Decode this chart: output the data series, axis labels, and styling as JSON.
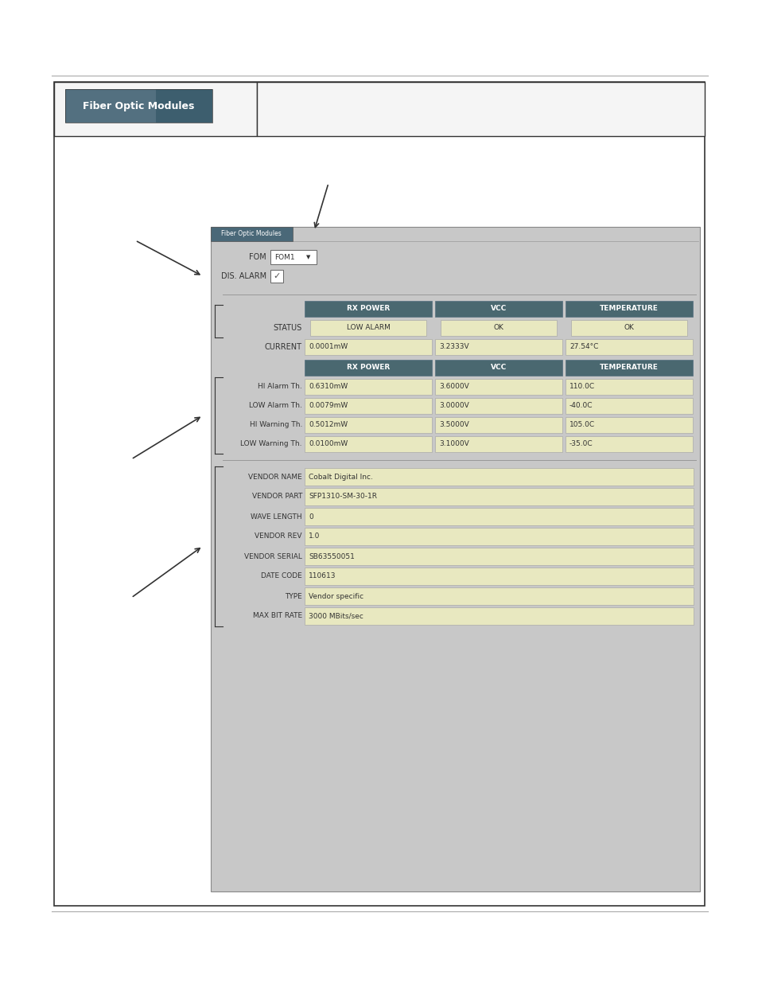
{
  "bg_color": "#ffffff",
  "panel_bg": "#c0c0c0",
  "field_bg": "#e8e8c0",
  "col_header_bg": "#4a6870",
  "col_header_text": "#ffffff",
  "header_tab_bg_light": "#5a7888",
  "header_tab_bg_dark": "#3a5865",
  "outer_box_bg": "#ffffff",
  "top_header_bg": "#f5f5f5",
  "btn_text": "Fiber Optic Modules",
  "inner_tab_text": "Fiber Optic Modules",
  "fom_label": "FOM",
  "fom_value": "FOM1",
  "dis_alarm_label": "DIS. ALARM",
  "status_headers": [
    "RX POWER",
    "VCC",
    "TEMPERATURE"
  ],
  "status_row_label": "STATUS",
  "status_values": [
    "LOW ALARM",
    "OK",
    "OK"
  ],
  "current_row_label": "CURRENT",
  "current_values": [
    "0.0001mW",
    "3.2333V",
    "27.54°C"
  ],
  "threshold_headers": [
    "RX POWER",
    "VCC",
    "TEMPERATURE"
  ],
  "threshold_rows": [
    {
      "label": "HI Alarm Th.",
      "values": [
        "0.6310mW",
        "3.6000V",
        "110.0C"
      ]
    },
    {
      "label": "LOW Alarm Th.",
      "values": [
        "0.0079mW",
        "3.0000V",
        "-40.0C"
      ]
    },
    {
      "label": "HI Warning Th.",
      "values": [
        "0.5012mW",
        "3.5000V",
        "105.0C"
      ]
    },
    {
      "label": "LOW Warning Th.",
      "values": [
        "0.0100mW",
        "3.1000V",
        "-35.0C"
      ]
    }
  ],
  "vendor_rows": [
    {
      "label": "VENDOR NAME",
      "value": "Cobalt Digital Inc."
    },
    {
      "label": "VENDOR PART",
      "value": "SFP1310-SM-30-1R"
    },
    {
      "label": "WAVE LENGTH",
      "value": "0"
    },
    {
      "label": "VENDOR REV",
      "value": "1.0"
    },
    {
      "label": "VENDOR SERIAL",
      "value": "SB63550051"
    },
    {
      "label": "DATE CODE",
      "value": "110613"
    },
    {
      "label": "TYPE",
      "value": "Vendor specific"
    },
    {
      "label": "MAX BIT RATE",
      "value": "3000 MBits/sec"
    }
  ]
}
